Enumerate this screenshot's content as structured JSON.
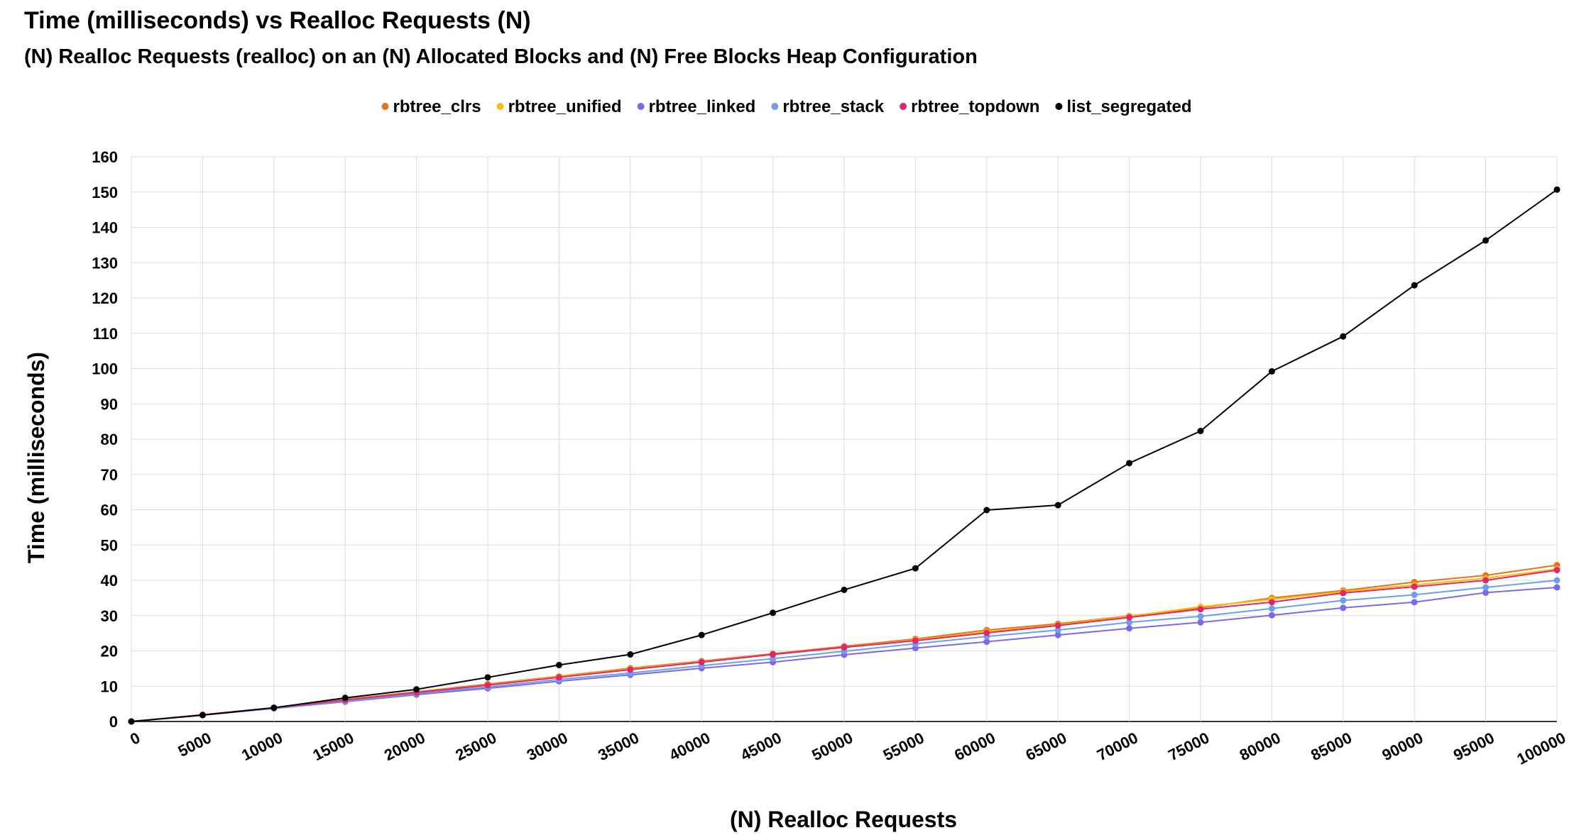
{
  "chart_data": {
    "type": "line",
    "title": "Time (milliseconds) vs Realloc Requests (N)",
    "subtitle": "(N) Realloc Requests (realloc) on an (N) Allocated Blocks and (N) Free Blocks Heap Configuration",
    "xlabel": "(N) Realloc Requests",
    "ylabel": "Time (milliseconds)",
    "x": [
      0,
      5000,
      10000,
      15000,
      20000,
      25000,
      30000,
      35000,
      40000,
      45000,
      50000,
      55000,
      60000,
      65000,
      70000,
      75000,
      80000,
      85000,
      90000,
      95000,
      100000
    ],
    "ylim": [
      0,
      160
    ],
    "yticks": [
      0,
      10,
      20,
      30,
      40,
      50,
      60,
      70,
      80,
      90,
      100,
      110,
      120,
      130,
      140,
      150,
      160
    ],
    "grid": true,
    "legend_position": "top",
    "series": [
      {
        "name": "rbtree_clrs",
        "color": "#e8711a",
        "values": [
          0,
          1.9,
          3.9,
          6.3,
          8.4,
          10.6,
          12.8,
          15.1,
          17.1,
          19.2,
          21.3,
          23.4,
          25.9,
          27.7,
          29.9,
          32.2,
          35.0,
          37.1,
          39.5,
          41.4,
          44.3
        ]
      },
      {
        "name": "rbtree_unified",
        "color": "#fbbc04",
        "values": [
          0,
          1.9,
          3.9,
          6.2,
          8.2,
          10.4,
          12.7,
          14.9,
          16.9,
          19.0,
          21.0,
          23.1,
          25.4,
          27.4,
          29.8,
          32.5,
          34.6,
          36.8,
          38.7,
          40.6,
          43.2
        ]
      },
      {
        "name": "rbtree_linked",
        "color": "#7b68ee",
        "values": [
          0,
          1.8,
          3.7,
          5.6,
          7.6,
          9.4,
          11.4,
          13.2,
          15.1,
          16.8,
          18.9,
          20.8,
          22.6,
          24.5,
          26.4,
          28.1,
          30.1,
          32.2,
          33.8,
          36.5,
          38.0
        ]
      },
      {
        "name": "rbtree_stack",
        "color": "#6d9eeb",
        "values": [
          0,
          1.8,
          3.8,
          5.8,
          7.9,
          9.8,
          11.9,
          13.7,
          15.8,
          17.8,
          19.9,
          22.0,
          24.1,
          25.9,
          28.1,
          29.8,
          32.0,
          34.3,
          35.9,
          38.0,
          40.0
        ]
      },
      {
        "name": "rbtree_topdown",
        "color": "#e0266f",
        "values": [
          0,
          1.9,
          3.9,
          6.1,
          8.2,
          10.3,
          12.5,
          14.7,
          16.8,
          19.0,
          21.0,
          22.9,
          25.1,
          27.2,
          29.5,
          31.8,
          33.8,
          36.4,
          38.2,
          40.0,
          42.9
        ]
      },
      {
        "name": "list_segregated",
        "color": "#000000",
        "values": [
          0,
          1.8,
          3.9,
          6.7,
          9.1,
          12.5,
          16.0,
          19.0,
          24.5,
          30.8,
          37.3,
          43.4,
          59.9,
          61.3,
          73.2,
          82.3,
          99.2,
          109.1,
          123.6,
          136.3,
          150.7
        ]
      }
    ]
  }
}
